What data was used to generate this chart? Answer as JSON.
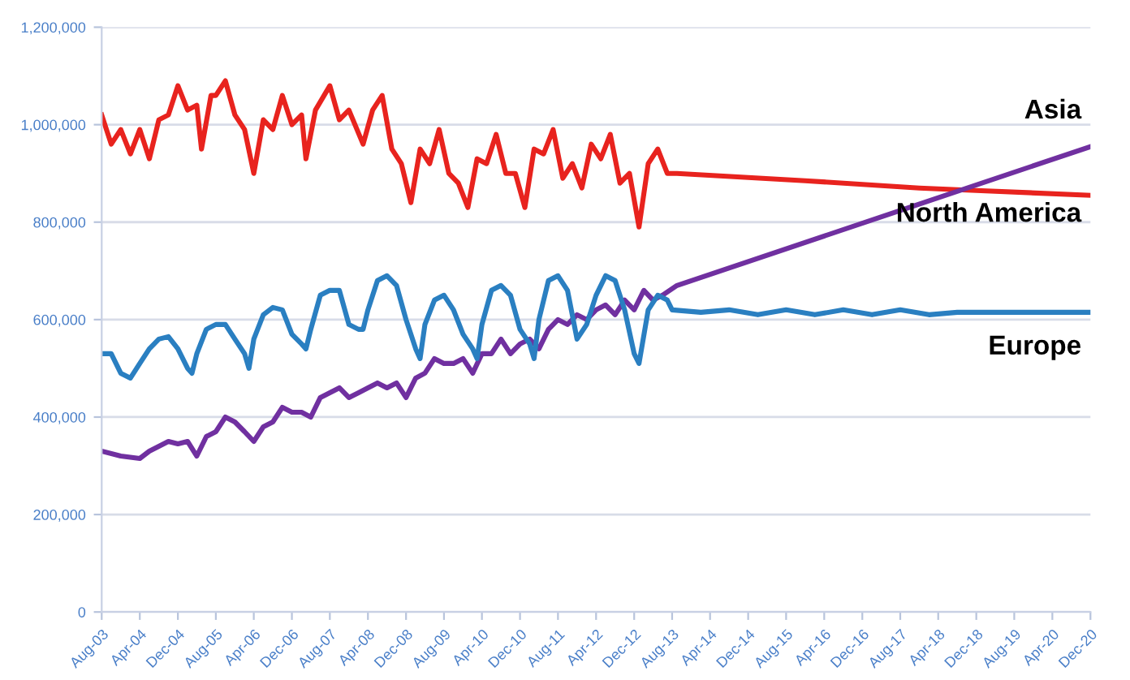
{
  "chart_data": {
    "type": "line",
    "grid": "y",
    "marker": "none",
    "line_style": "solid",
    "ylim": [
      0,
      1200000
    ],
    "yticks": [
      {
        "value": 0,
        "label": "0"
      },
      {
        "value": 200000,
        "label": "200,000"
      },
      {
        "value": 400000,
        "label": "400,000"
      },
      {
        "value": 600000,
        "label": "600,000"
      },
      {
        "value": 800000,
        "label": "800,000"
      },
      {
        "value": 1000000,
        "label": "1,000,000"
      },
      {
        "value": 1200000,
        "label": "1,200,000"
      }
    ],
    "xlim": [
      "2003-08",
      "2020-12"
    ],
    "xticks": [
      {
        "value": "2003-08",
        "label": "Aug-03"
      },
      {
        "value": "2004-04",
        "label": "Apr-04"
      },
      {
        "value": "2004-12",
        "label": "Dec-04"
      },
      {
        "value": "2005-08",
        "label": "Aug-05"
      },
      {
        "value": "2006-04",
        "label": "Apr-06"
      },
      {
        "value": "2006-12",
        "label": "Dec-06"
      },
      {
        "value": "2007-08",
        "label": "Aug-07"
      },
      {
        "value": "2008-04",
        "label": "Apr-08"
      },
      {
        "value": "2008-12",
        "label": "Dec-08"
      },
      {
        "value": "2009-08",
        "label": "Aug-09"
      },
      {
        "value": "2010-04",
        "label": "Apr-10"
      },
      {
        "value": "2010-12",
        "label": "Dec-10"
      },
      {
        "value": "2011-08",
        "label": "Aug-11"
      },
      {
        "value": "2012-04",
        "label": "Apr-12"
      },
      {
        "value": "2012-12",
        "label": "Dec-12"
      },
      {
        "value": "2013-08",
        "label": "Aug-13"
      },
      {
        "value": "2014-04",
        "label": "Apr-14"
      },
      {
        "value": "2014-12",
        "label": "Dec-14"
      },
      {
        "value": "2015-08",
        "label": "Aug-15"
      },
      {
        "value": "2016-04",
        "label": "Apr-16"
      },
      {
        "value": "2016-12",
        "label": "Dec-16"
      },
      {
        "value": "2017-08",
        "label": "Aug-17"
      },
      {
        "value": "2018-04",
        "label": "Apr-18"
      },
      {
        "value": "2018-12",
        "label": "Dec-18"
      },
      {
        "value": "2019-08",
        "label": "Aug-19"
      },
      {
        "value": "2020-04",
        "label": "Apr-20"
      },
      {
        "value": "2020-12",
        "label": "Dec-20"
      }
    ],
    "series": [
      {
        "name": "North America",
        "color": "#e8231e",
        "x": [
          "2003-08",
          "2003-10",
          "2003-12",
          "2004-02",
          "2004-04",
          "2004-06",
          "2004-08",
          "2004-10",
          "2004-12",
          "2005-02",
          "2005-04",
          "2005-05",
          "2005-07",
          "2005-08",
          "2005-10",
          "2005-12",
          "2006-02",
          "2006-04",
          "2006-06",
          "2006-08",
          "2006-10",
          "2006-12",
          "2007-02",
          "2007-03",
          "2007-05",
          "2007-08",
          "2007-10",
          "2007-12",
          "2008-03",
          "2008-05",
          "2008-07",
          "2008-09",
          "2008-11",
          "2009-01",
          "2009-03",
          "2009-05",
          "2009-07",
          "2009-09",
          "2009-11",
          "2010-01",
          "2010-03",
          "2010-05",
          "2010-07",
          "2010-09",
          "2010-11",
          "2011-01",
          "2011-03",
          "2011-05",
          "2011-07",
          "2011-09",
          "2011-11",
          "2012-01",
          "2012-03",
          "2012-05",
          "2012-07",
          "2012-09",
          "2012-11",
          "2013-01",
          "2013-03",
          "2013-05",
          "2013-07",
          "2013-09",
          "2015-12",
          "2017-12",
          "2018-12",
          "2020-12"
        ],
        "values": [
          1020000,
          960000,
          990000,
          940000,
          990000,
          930000,
          1010000,
          1020000,
          1080000,
          1030000,
          1040000,
          950000,
          1060000,
          1060000,
          1090000,
          1020000,
          990000,
          900000,
          1010000,
          990000,
          1060000,
          1000000,
          1020000,
          930000,
          1030000,
          1080000,
          1010000,
          1030000,
          960000,
          1030000,
          1060000,
          950000,
          920000,
          840000,
          950000,
          920000,
          990000,
          900000,
          880000,
          830000,
          930000,
          920000,
          980000,
          900000,
          900000,
          830000,
          950000,
          940000,
          990000,
          890000,
          920000,
          870000,
          960000,
          930000,
          980000,
          880000,
          900000,
          790000,
          920000,
          950000,
          900000,
          900000,
          885000,
          870000,
          865000,
          855000
        ]
      },
      {
        "name": "Asia",
        "color": "#7030a0",
        "x": [
          "2003-08",
          "2003-12",
          "2004-04",
          "2004-06",
          "2004-10",
          "2004-12",
          "2005-02",
          "2005-04",
          "2005-06",
          "2005-08",
          "2005-10",
          "2005-12",
          "2006-02",
          "2006-04",
          "2006-06",
          "2006-08",
          "2006-10",
          "2006-12",
          "2007-02",
          "2007-04",
          "2007-06",
          "2007-08",
          "2007-10",
          "2007-12",
          "2008-02",
          "2008-04",
          "2008-06",
          "2008-08",
          "2008-10",
          "2008-12",
          "2009-02",
          "2009-04",
          "2009-06",
          "2009-08",
          "2009-10",
          "2009-12",
          "2010-02",
          "2010-04",
          "2010-06",
          "2010-08",
          "2010-10",
          "2010-12",
          "2011-02",
          "2011-04",
          "2011-06",
          "2011-08",
          "2011-10",
          "2011-12",
          "2012-02",
          "2012-04",
          "2012-06",
          "2012-08",
          "2012-10",
          "2012-12",
          "2013-02",
          "2013-04",
          "2013-06",
          "2013-09",
          "2020-12"
        ],
        "values": [
          330000,
          320000,
          315000,
          330000,
          350000,
          345000,
          350000,
          320000,
          360000,
          370000,
          400000,
          390000,
          370000,
          350000,
          380000,
          390000,
          420000,
          410000,
          410000,
          400000,
          440000,
          450000,
          460000,
          440000,
          450000,
          460000,
          470000,
          460000,
          470000,
          440000,
          480000,
          490000,
          520000,
          510000,
          510000,
          520000,
          490000,
          530000,
          530000,
          560000,
          530000,
          550000,
          560000,
          540000,
          580000,
          600000,
          590000,
          610000,
          600000,
          620000,
          630000,
          610000,
          640000,
          620000,
          660000,
          640000,
          650000,
          670000,
          955000
        ]
      },
      {
        "name": "Europe",
        "color": "#2a7fc1",
        "x": [
          "2003-08",
          "2003-10",
          "2003-12",
          "2004-02",
          "2004-04",
          "2004-06",
          "2004-08",
          "2004-10",
          "2004-12",
          "2005-02",
          "2005-03",
          "2005-04",
          "2005-06",
          "2005-08",
          "2005-10",
          "2005-12",
          "2006-02",
          "2006-03",
          "2006-04",
          "2006-06",
          "2006-08",
          "2006-10",
          "2006-12",
          "2007-02",
          "2007-03",
          "2007-04",
          "2007-06",
          "2007-08",
          "2007-10",
          "2007-12",
          "2008-02",
          "2008-03",
          "2008-04",
          "2008-06",
          "2008-08",
          "2008-10",
          "2008-12",
          "2009-02",
          "2009-03",
          "2009-04",
          "2009-06",
          "2009-08",
          "2009-10",
          "2009-12",
          "2010-02",
          "2010-03",
          "2010-04",
          "2010-06",
          "2010-08",
          "2010-10",
          "2010-12",
          "2011-02",
          "2011-03",
          "2011-04",
          "2011-06",
          "2011-08",
          "2011-10",
          "2011-12",
          "2012-02",
          "2012-04",
          "2012-06",
          "2012-08",
          "2012-10",
          "2012-12",
          "2013-01",
          "2013-03",
          "2013-05",
          "2013-07",
          "2013-08",
          "2014-02",
          "2014-08",
          "2015-02",
          "2015-08",
          "2016-02",
          "2016-08",
          "2017-02",
          "2017-08",
          "2018-02",
          "2018-08",
          "2020-12"
        ],
        "values": [
          530000,
          530000,
          490000,
          480000,
          510000,
          540000,
          560000,
          565000,
          540000,
          500000,
          490000,
          530000,
          580000,
          590000,
          590000,
          560000,
          530000,
          500000,
          560000,
          610000,
          625000,
          620000,
          570000,
          550000,
          540000,
          580000,
          650000,
          660000,
          660000,
          590000,
          580000,
          580000,
          620000,
          680000,
          690000,
          670000,
          600000,
          540000,
          520000,
          590000,
          640000,
          650000,
          620000,
          570000,
          540000,
          520000,
          590000,
          660000,
          670000,
          650000,
          580000,
          550000,
          520000,
          600000,
          680000,
          690000,
          660000,
          560000,
          590000,
          650000,
          690000,
          680000,
          620000,
          530000,
          510000,
          620000,
          650000,
          640000,
          620000,
          615000,
          620000,
          610000,
          620000,
          610000,
          620000,
          610000,
          620000,
          610000,
          615000,
          615000
        ]
      }
    ]
  }
}
